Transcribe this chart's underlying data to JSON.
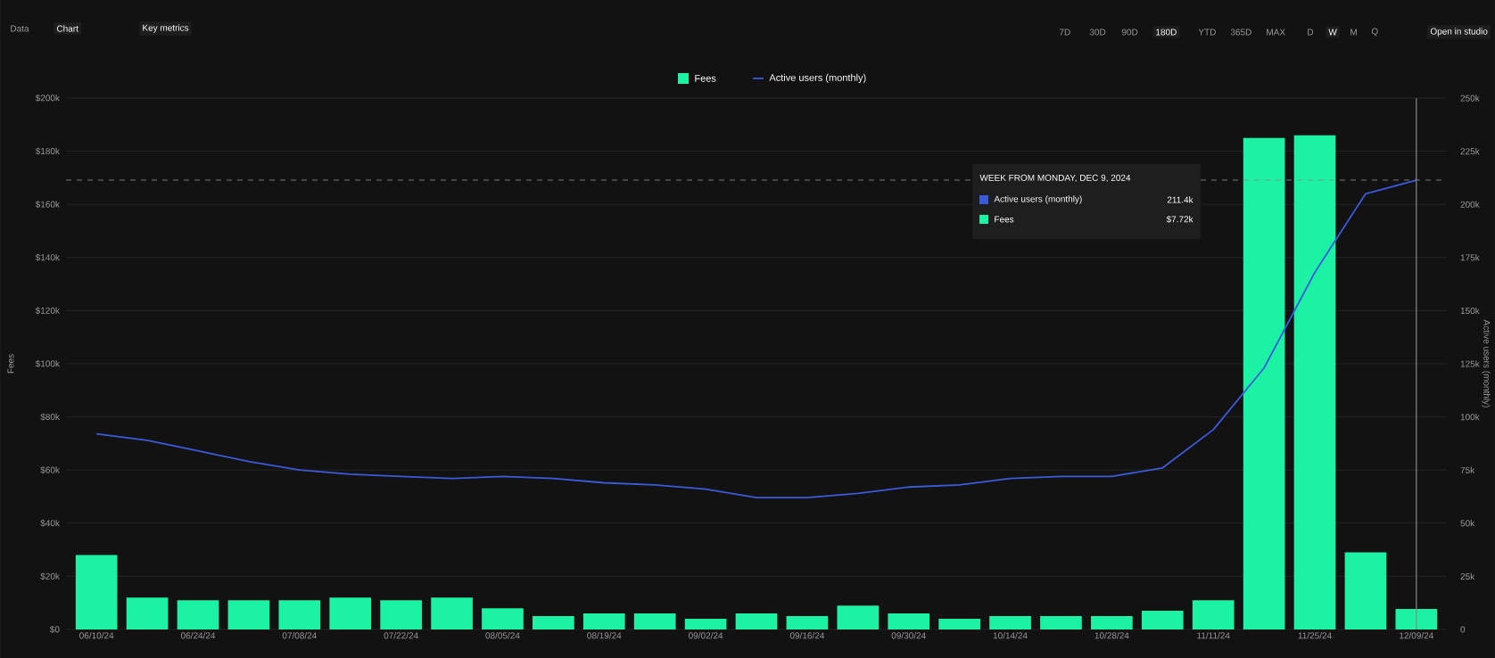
{
  "chart_data": {
    "type": "bar",
    "categories": [
      "06/10/24",
      null,
      "06/24/24",
      null,
      "07/08/24",
      null,
      "07/22/24",
      null,
      "08/05/24",
      null,
      "08/19/24",
      null,
      "09/02/24",
      null,
      "09/16/24",
      null,
      "09/30/24",
      null,
      "10/14/24",
      null,
      "10/28/24",
      null,
      "11/11/24",
      null,
      "11/25/24",
      null,
      "12/09/24"
    ],
    "series": [
      {
        "name": "Fees",
        "color": "#1cf2a4",
        "values": [
          28,
          12,
          11,
          11,
          11,
          12,
          11,
          12,
          8,
          5,
          6,
          6,
          4,
          6,
          5,
          9,
          6,
          4,
          5,
          5,
          5,
          7,
          11,
          185,
          186,
          29,
          7.72
        ]
      },
      {
        "name": "Active users (monthly)",
        "type": "line",
        "axis": "y2",
        "color": "#3b5bdb",
        "values": [
          92,
          89,
          84,
          79,
          75,
          73,
          72,
          71,
          72,
          71,
          69,
          68,
          66,
          62,
          62,
          64,
          67,
          68,
          71,
          72,
          72,
          76,
          94,
          123,
          168,
          205,
          211.4
        ]
      }
    ],
    "ylabel": "Fees",
    "y2label": "Active users (monthly)",
    "ylim": [
      0,
      200
    ],
    "yticks": [
      {
        "value": 0,
        "label": "$0"
      },
      {
        "value": 20,
        "label": "$20k"
      },
      {
        "value": 40,
        "label": "$40k"
      },
      {
        "value": 60,
        "label": "$60k"
      },
      {
        "value": 80,
        "label": "$80k"
      },
      {
        "value": 100,
        "label": "$100k"
      },
      {
        "value": 120,
        "label": "$120k"
      },
      {
        "value": 140,
        "label": "$140k"
      },
      {
        "value": 160,
        "label": "$160k"
      },
      {
        "value": 180,
        "label": "$180k"
      },
      {
        "value": 200,
        "label": "$200k"
      }
    ],
    "y2lim": [
      0,
      250
    ],
    "y2ticks": [
      0,
      {
        "value": 25,
        "label": "25k"
      },
      {
        "value": 50,
        "label": "50k"
      },
      {
        "value": 75,
        "label": "75k"
      },
      {
        "value": 100,
        "label": "100k"
      },
      {
        "value": 125,
        "label": "125k"
      },
      {
        "value": 150,
        "label": "150k"
      },
      {
        "value": 175,
        "label": "175k"
      },
      {
        "value": 200,
        "label": "200k"
      },
      {
        "value": 225,
        "label": "225k"
      },
      {
        "value": 250,
        "label": "250k"
      }
    ],
    "ref_lines": [
      {
        "axis": "y2",
        "value": 211.4,
        "line_style": "dashed",
        "color": "#8a8a8a"
      },
      {
        "axis": "x",
        "value": "12/09/24",
        "line_style": "solid",
        "color": "#8a8a8a"
      }
    ],
    "grid": "y",
    "legend": "top",
    "annotations": [
      "Data",
      "Chart",
      "Key metrics",
      "7D",
      "30D",
      "90D",
      "180D",
      "YTD",
      "365D",
      "MAX",
      "D",
      "W",
      "M",
      "Q",
      "Open in studio",
      "WEEK FROM MONDAY, DEC 9, 2024",
      "211.4k",
      "$7.72k"
    ]
  }
}
